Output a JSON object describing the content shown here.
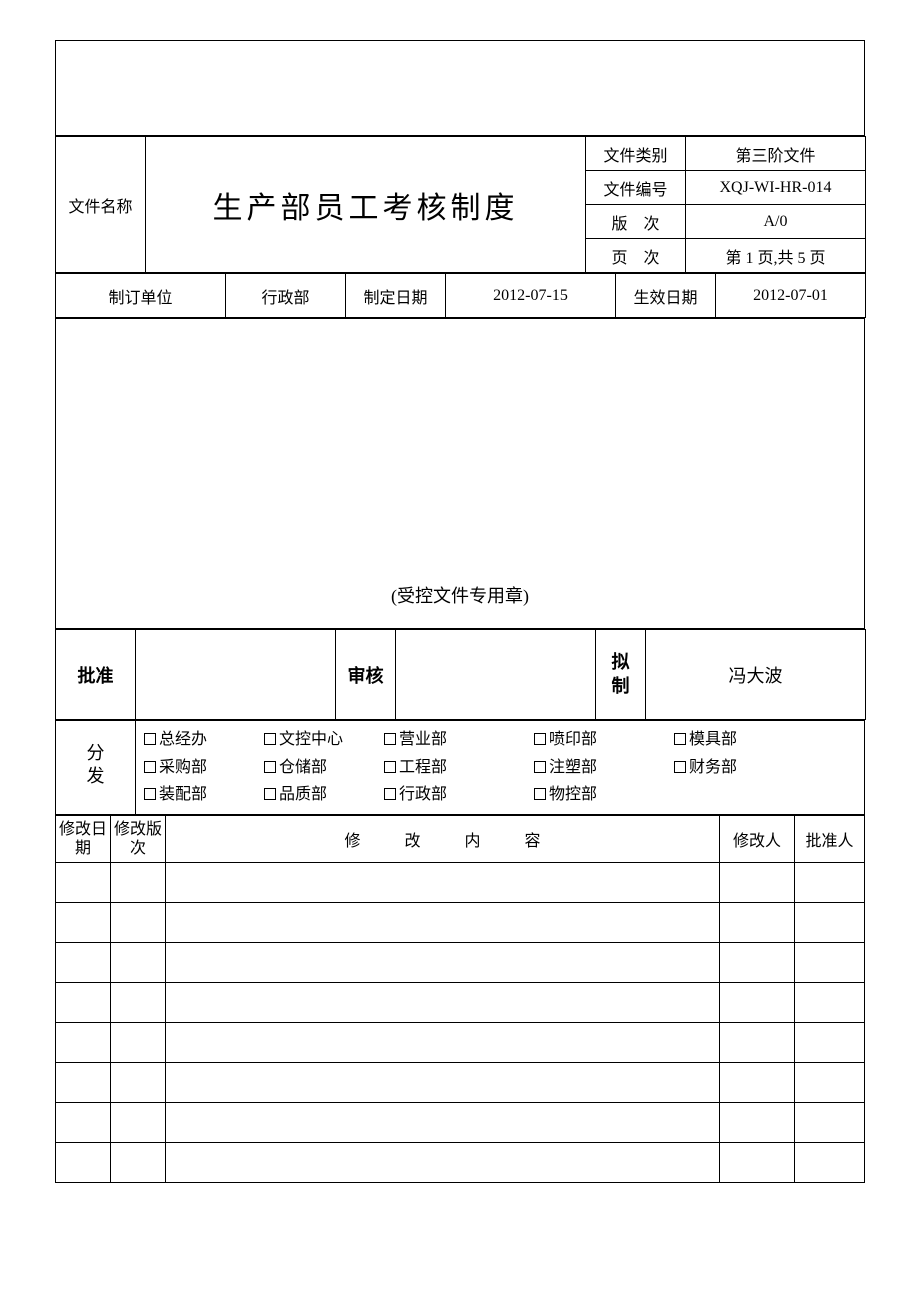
{
  "header": {
    "doc_name_label": "文件名称",
    "doc_title": "生产部员工考核制度",
    "meta": [
      {
        "label": "文件类别",
        "value": "第三阶文件"
      },
      {
        "label": "文件编号",
        "value": "XQJ-WI-HR-014"
      },
      {
        "label": "版　次",
        "value": "A/0"
      },
      {
        "label": "页　次",
        "value": "第 1 页,共 5 页"
      }
    ],
    "row2": {
      "issuer_label": "制订单位",
      "issuer_value": "行政部",
      "create_date_label": "制定日期",
      "create_date_value": "2012-07-15",
      "effective_date_label": "生效日期",
      "effective_date_value": "2012-07-01"
    }
  },
  "stamp_text": "(受控文件专用章)",
  "approval": {
    "approve_label": "批准",
    "approve_value": "",
    "review_label": "审核",
    "review_value": "",
    "draft_label_line1": "拟",
    "draft_label_line2": "制",
    "draft_value": "冯大波"
  },
  "distribution": {
    "label_line1": "分",
    "label_line2": "发",
    "items_row1": [
      "总经办",
      "文控中心",
      "营业部",
      "喷印部",
      "模具部"
    ],
    "items_row2": [
      "采购部",
      "仓储部",
      "工程部",
      "注塑部",
      "财务部"
    ],
    "items_row3": [
      "装配部",
      "品质部",
      "行政部",
      "物控部",
      ""
    ]
  },
  "revision": {
    "headers": {
      "date": "修改日期",
      "ver": "修改版次",
      "content": "修　改　内　容",
      "by": "修改人",
      "appr": "批准人"
    },
    "blank_rows": 8
  },
  "style": {
    "border_color": "#000000",
    "background": "#ffffff",
    "text_color": "#000000",
    "title_fontsize": 30,
    "body_fontsize": 16
  }
}
